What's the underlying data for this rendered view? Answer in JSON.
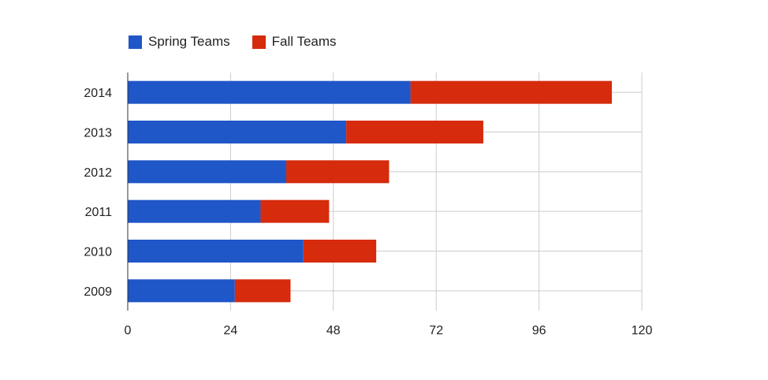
{
  "chart_data": {
    "type": "bar",
    "orientation": "horizontal",
    "stacked": true,
    "categories": [
      "2014",
      "2013",
      "2012",
      "2011",
      "2010",
      "2009"
    ],
    "series": [
      {
        "name": "Spring Teams",
        "color": "#1f56c8",
        "values": [
          66,
          51,
          37,
          31,
          41,
          25
        ]
      },
      {
        "name": "Fall Teams",
        "color": "#d62b0d",
        "values": [
          47,
          32,
          24,
          16,
          17,
          13
        ]
      }
    ],
    "xlim": [
      0,
      120
    ],
    "xticks": [
      0,
      24,
      48,
      72,
      96,
      120
    ],
    "grid": true,
    "legend_position": "top-left",
    "title": "",
    "xlabel": "",
    "ylabel": ""
  }
}
